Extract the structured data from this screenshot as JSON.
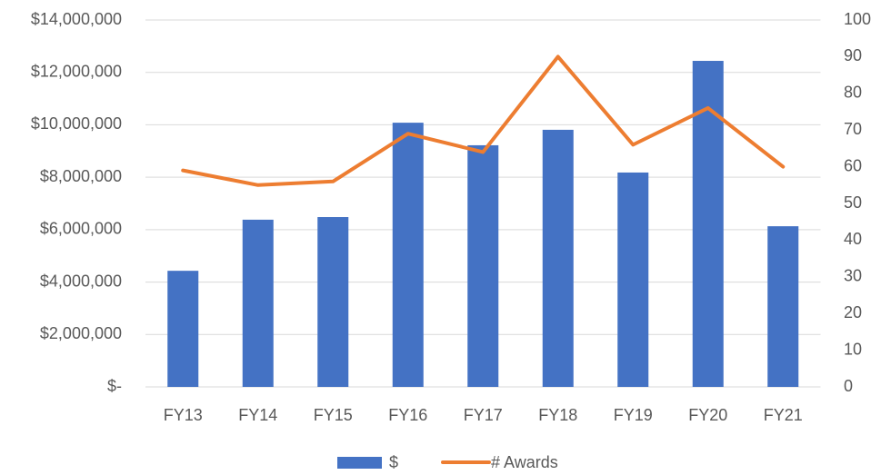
{
  "chart_data": {
    "type": "combo",
    "categories": [
      "FY13",
      "FY14",
      "FY15",
      "FY16",
      "FY17",
      "FY18",
      "FY19",
      "FY20",
      "FY21"
    ],
    "series": [
      {
        "name": "$",
        "type": "bar",
        "color": "#4472c4",
        "values": [
          4430000,
          6380000,
          6480000,
          10080000,
          9220000,
          9810000,
          8180000,
          12440000,
          6130000
        ]
      },
      {
        "name": "# Awards",
        "type": "line",
        "axis": "y2",
        "color": "#ed7d31",
        "values": [
          59,
          55,
          56,
          69,
          64,
          90,
          66,
          76,
          60
        ]
      }
    ],
    "ylim": [
      0,
      14000000
    ],
    "yticks": [
      {
        "value": 0,
        "label": "$-"
      },
      {
        "value": 2000000,
        "label": "$2,000,000"
      },
      {
        "value": 4000000,
        "label": "$4,000,000"
      },
      {
        "value": 6000000,
        "label": "$6,000,000"
      },
      {
        "value": 8000000,
        "label": "$8,000,000"
      },
      {
        "value": 10000000,
        "label": "$10,000,000"
      },
      {
        "value": 12000000,
        "label": "$12,000,000"
      },
      {
        "value": 14000000,
        "label": "$14,000,000"
      }
    ],
    "y2lim": [
      0,
      100
    ],
    "y2ticks": [
      0,
      10,
      20,
      30,
      40,
      50,
      60,
      70,
      80,
      90,
      100
    ],
    "grid": true,
    "legend": "bottom"
  }
}
